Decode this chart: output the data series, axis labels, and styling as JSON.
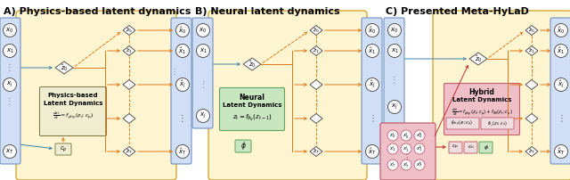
{
  "title_A": "A) Physics-based latent dynamics",
  "title_B": "B) Neural latent dynamics",
  "title_C": "C) Presented Meta-HyLaD",
  "panel_yellow_fc": "#FFF5D0",
  "panel_yellow_ec": "#D4A830",
  "blue_box_fc": "#D0DFF5",
  "blue_box_ec": "#7090C0",
  "phys_box_fc": "#F0EDD0",
  "phys_box_ec": "#808050",
  "neural_box_fc": "#C8E6C0",
  "neural_box_ec": "#60A060",
  "pink_box_fc": "#F0C0C8",
  "pink_box_ec": "#C06070",
  "hybrid_box_fc": "#F0C0C8",
  "hybrid_box_ec": "#C06070",
  "fphy_box_fc": "#F0DDE0",
  "fphy_box_ec": "#C06070",
  "cp_box_fc": "#F0DDE0",
  "cp_box_ec": "#C06070",
  "cn_box_fc": "#F0DDE0",
  "cn_box_ec": "#C06070",
  "phi_box_fc": "#C8E6C0",
  "phi_box_ec": "#60A060",
  "orange": "#E07818",
  "blue": "#4080B0",
  "red": "#C03030",
  "title_fs": 8,
  "label_fs": 6.0
}
